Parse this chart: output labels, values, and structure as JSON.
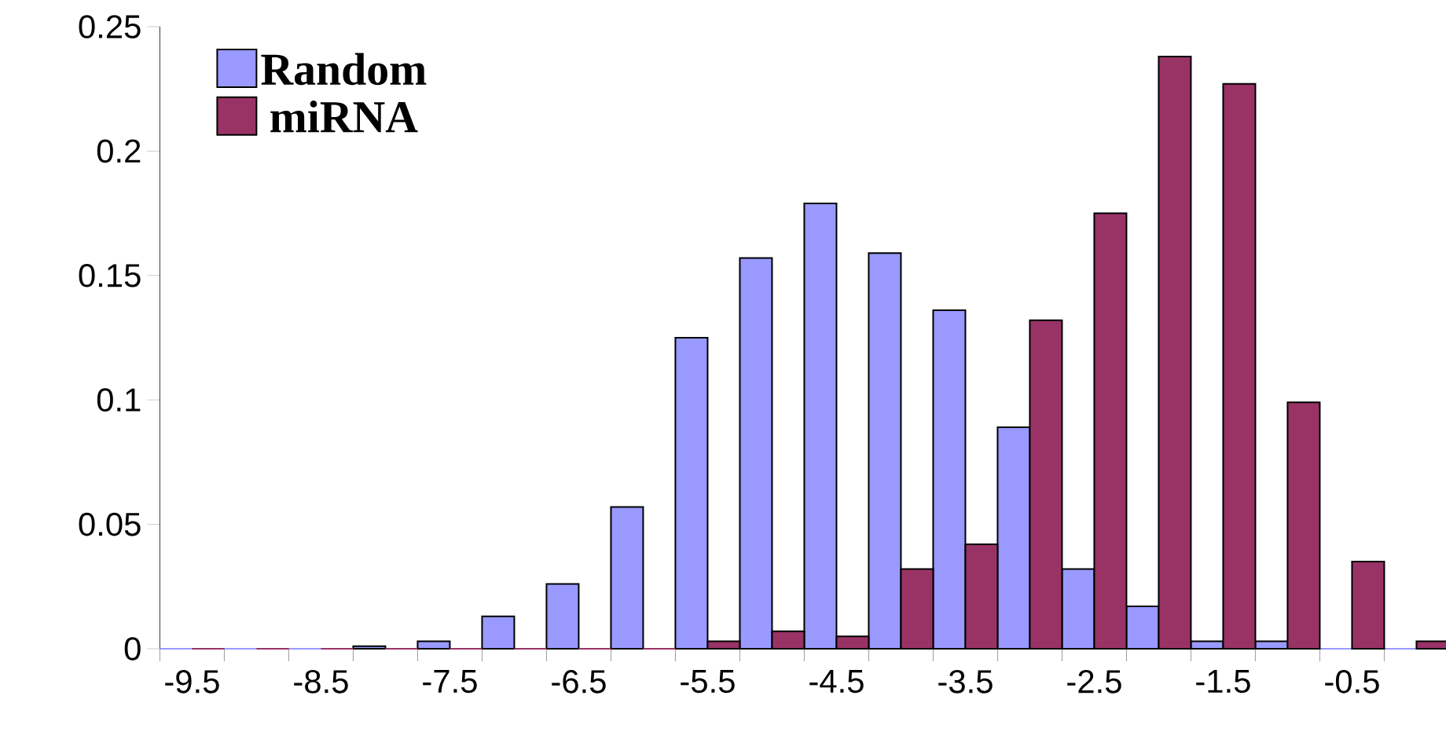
{
  "chart_data": {
    "type": "bar",
    "categories": [
      "-9.5",
      null,
      "-8.5",
      null,
      "-7.5",
      null,
      "-6.5",
      null,
      "-5.5",
      null,
      "-4.5",
      null,
      "-3.5",
      null,
      "-2.5",
      null,
      "-1.5",
      null,
      "-0.5",
      null
    ],
    "series": [
      {
        "name": "Random",
        "color": "#9999ff",
        "values": [
          0,
          0,
          0,
          0.001,
          0.003,
          0.013,
          0.026,
          0.057,
          0.125,
          0.157,
          0.179,
          0.159,
          0.136,
          0.089,
          0.032,
          0.017,
          0.003,
          0.003,
          0,
          0
        ]
      },
      {
        "name": "miRNA",
        "color": "#993366",
        "values": [
          0,
          0,
          0,
          0,
          0,
          0,
          0,
          0,
          0.003,
          0.007,
          0.005,
          0.032,
          0.042,
          0.132,
          0.175,
          0.238,
          0.227,
          0.099,
          0.035,
          0.003
        ]
      }
    ],
    "ylim": [
      0,
      0.25
    ],
    "yticks": [
      0,
      0.05,
      0.1,
      0.15,
      0.2,
      0.25
    ],
    "legend": "top left",
    "grid": false
  }
}
